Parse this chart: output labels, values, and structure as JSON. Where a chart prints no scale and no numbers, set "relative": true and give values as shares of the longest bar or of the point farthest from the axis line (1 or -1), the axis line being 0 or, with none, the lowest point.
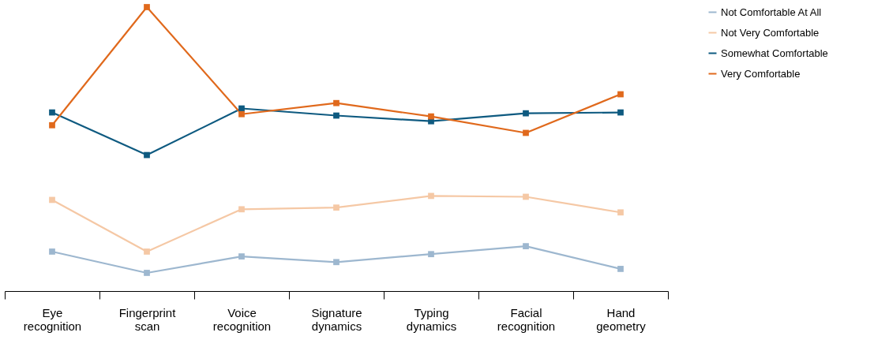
{
  "chart_data": {
    "type": "line",
    "relative": true,
    "marker": "square",
    "legend": "right",
    "grid": false,
    "categories": [
      "Eye recognition",
      "Fingerprint scan",
      "Voice recognition",
      "Signature dynamics",
      "Typing dynamics",
      "Facial recognition",
      "Hand geometry"
    ],
    "series": [
      {
        "name": "Not Comfortable At All",
        "color": "#9db7cf",
        "values": [
          0.139,
          0.064,
          0.122,
          0.102,
          0.13,
          0.158,
          0.078
        ]
      },
      {
        "name": "Not Very Comfortable",
        "color": "#f5c8a5",
        "values": [
          0.321,
          0.139,
          0.288,
          0.294,
          0.335,
          0.332,
          0.277
        ]
      },
      {
        "name": "Somewhat Comfortable",
        "color": "#0e5a80",
        "values": [
          0.629,
          0.479,
          0.643,
          0.618,
          0.598,
          0.626,
          0.629
        ]
      },
      {
        "name": "Very Comfortable",
        "color": "#e0691c",
        "values": [
          0.584,
          1.0,
          0.623,
          0.662,
          0.615,
          0.557,
          0.693
        ]
      }
    ]
  }
}
